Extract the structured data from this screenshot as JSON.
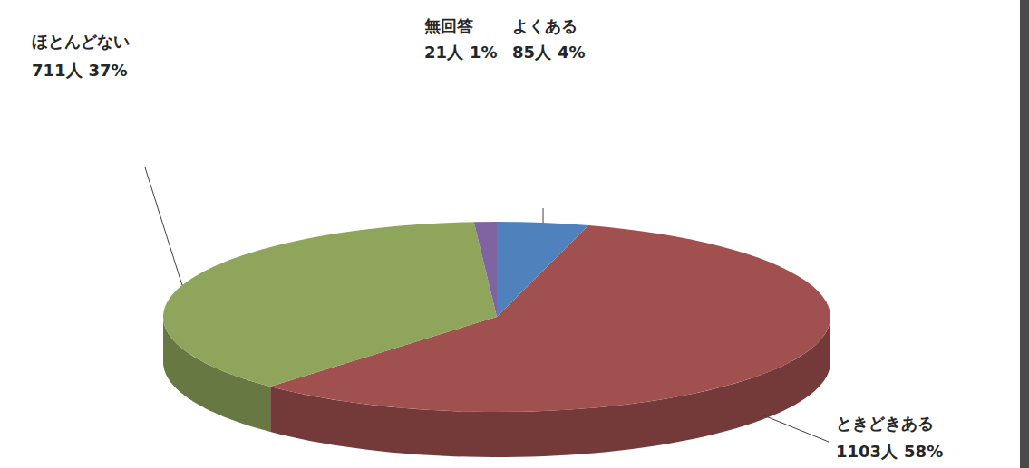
{
  "chart_data": {
    "type": "pie",
    "categories": [
      "よくある",
      "ときどきある",
      "ほとんどない",
      "無回答"
    ],
    "values": [
      85,
      1103,
      711,
      21
    ],
    "value_labels": [
      "85人",
      "1103人",
      "711人",
      "21人"
    ],
    "percents": [
      4,
      58,
      37,
      1
    ],
    "percent_labels": [
      "4%",
      "58%",
      "37%",
      "1%"
    ],
    "colors": [
      "#4f81bd",
      "#a0504e",
      "#8fa55c",
      "#8064a2"
    ],
    "data_labels": true
  }
}
